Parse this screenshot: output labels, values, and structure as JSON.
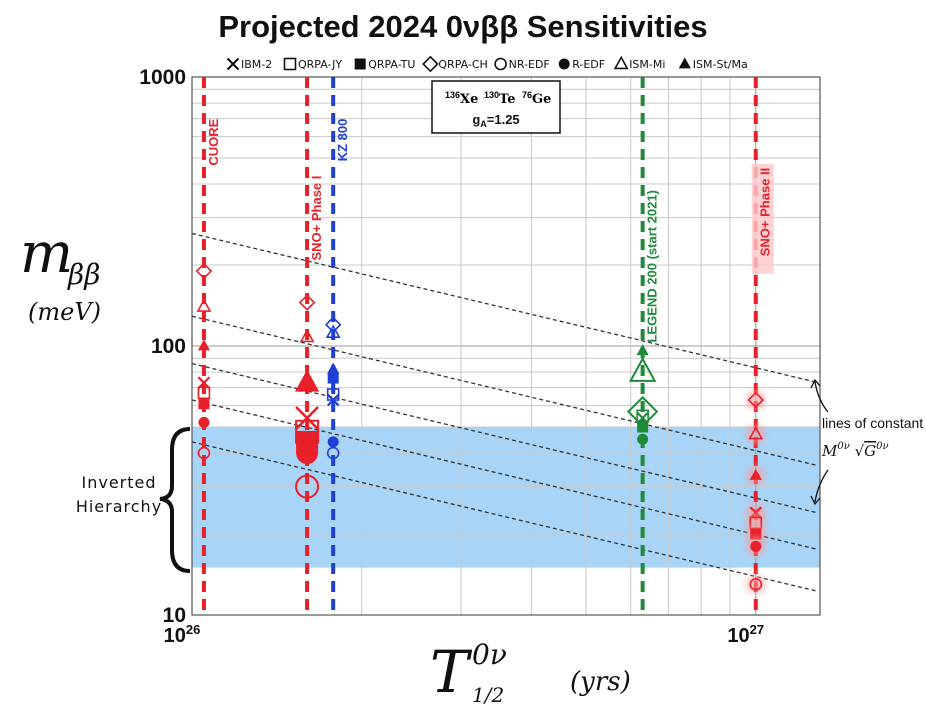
{
  "chart_data": {
    "type": "scatter",
    "title": "Projected 2024 0νββ Sensitivities",
    "xlabel": {
      "main": "T",
      "superscript": "0ν",
      "subscript": "1/2",
      "unit": "(yrs)"
    },
    "ylabel": {
      "main": "m",
      "subscript": "ββ",
      "unit": "(meV)"
    },
    "x_scale": "log",
    "y_scale": "log",
    "xlim": [
      1e+26,
      1.3e+27
    ],
    "ylim": [
      10,
      1000
    ],
    "y_ticks": [
      {
        "value": 10,
        "label": "10"
      },
      {
        "value": 100,
        "label": "100"
      },
      {
        "value": 1000,
        "label": "1000"
      }
    ],
    "x_ticks": [
      {
        "value": 1e+26,
        "base": "10",
        "exponent": "26"
      },
      {
        "value": 1e+27,
        "base": "10",
        "exponent": "27"
      }
    ],
    "grid": true,
    "legend": {
      "placement": "top",
      "entries": [
        {
          "label": "IBM-2",
          "marker": "x"
        },
        {
          "label": "QRPA-JY",
          "marker": "square-open"
        },
        {
          "label": "QRPA-TU",
          "marker": "square-filled"
        },
        {
          "label": "QRPA-CH",
          "marker": "diamond-open"
        },
        {
          "label": "NR-EDF",
          "marker": "circle-open"
        },
        {
          "label": "R-EDF",
          "marker": "circle-filled"
        },
        {
          "label": "ISM-Mi",
          "marker": "triangle-open"
        },
        {
          "label": "ISM-St/Ma",
          "marker": "triangle-filled"
        }
      ]
    },
    "annotation_box": {
      "isotopes": [
        {
          "mass": "136",
          "symbol": "Xe",
          "color": "#1f3fd6"
        },
        {
          "mass": "130",
          "symbol": "Te",
          "color": "#e8202a"
        },
        {
          "mass": "76",
          "symbol": "Ge",
          "color": "#1e8a3a"
        }
      ],
      "ga_prefix": "g",
      "ga_sub": "A",
      "ga_value": "=1.25"
    },
    "band": {
      "label_line1": "Inverted",
      "label_line2": "Hierarchy",
      "ymin": 15,
      "ymax": 50,
      "color": "#a8d4f7"
    },
    "constant_lines": {
      "label_line1": "lines of constant",
      "label_math": "M^{0ν} √G^{0ν}",
      "slope_decades_per_decade": -0.5,
      "lines": [
        {
          "y_at_xmin": 262,
          "y_at_1e27": 83
        },
        {
          "y_at_xmin": 129,
          "y_at_1e27": 40.8
        },
        {
          "y_at_xmin": 86,
          "y_at_1e27": 27.2
        },
        {
          "y_at_xmin": 63,
          "y_at_1e27": 19.9
        },
        {
          "y_at_xmin": 44,
          "y_at_1e27": 13.9
        }
      ]
    },
    "experiments": [
      {
        "name": "CUORE",
        "x": 1.05e+26,
        "color": "#e8202a",
        "label_y": 700,
        "label_style": "normal"
      },
      {
        "name": "SNO+ Phase I",
        "x": 1.6e+26,
        "color": "#e8202a",
        "label_y": 430,
        "label_style": "normal"
      },
      {
        "name": "KZ 800",
        "x": 1.78e+26,
        "color": "#1f3fd6",
        "label_y": 700,
        "label_style": "normal"
      },
      {
        "name": "LEGEND 200 (start 2021)",
        "x": 6.3e+26,
        "color": "#1e8a3a",
        "label_y": 380,
        "label_style": "normal"
      },
      {
        "name": "SNO+ Phase II",
        "x": 1e+27,
        "color": "#e8202a",
        "label_y": 460,
        "label_style": "glow"
      }
    ],
    "series": [
      {
        "experiment": "CUORE",
        "color": "#e8202a",
        "points": [
          {
            "marker": "diamond-open",
            "y": 190
          },
          {
            "marker": "triangle-open",
            "y": 140
          },
          {
            "marker": "triangle-filled",
            "y": 100
          },
          {
            "marker": "x",
            "y": 73
          },
          {
            "marker": "square-open",
            "y": 67
          },
          {
            "marker": "square-filled",
            "y": 61
          },
          {
            "marker": "circle-filled",
            "y": 52
          },
          {
            "marker": "circle-open",
            "y": 40
          }
        ]
      },
      {
        "experiment": "SNO+ Phase I",
        "color": "#e8202a",
        "points": [
          {
            "marker": "diamond-open",
            "y": 145
          },
          {
            "marker": "triangle-open",
            "y": 108
          },
          {
            "marker": "triangle-filled-large",
            "y": 73
          },
          {
            "marker": "x-large",
            "y": 54
          },
          {
            "marker": "square-open-large",
            "y": 48
          },
          {
            "marker": "square-filled-large",
            "y": 44
          },
          {
            "marker": "circle-filled-large",
            "y": 40
          },
          {
            "marker": "circle-open-large",
            "y": 30
          }
        ]
      },
      {
        "experiment": "KZ 800",
        "color": "#1f3fd6",
        "points": [
          {
            "marker": "diamond-open",
            "y": 120
          },
          {
            "marker": "triangle-open",
            "y": 112
          },
          {
            "marker": "triangle-filled",
            "y": 82
          },
          {
            "marker": "square-filled",
            "y": 76
          },
          {
            "marker": "square-open",
            "y": 66
          },
          {
            "marker": "x",
            "y": 63
          },
          {
            "marker": "circle-filled",
            "y": 44
          },
          {
            "marker": "circle-open",
            "y": 40
          }
        ]
      },
      {
        "experiment": "LEGEND 200 (start 2021)",
        "color": "#1e8a3a",
        "points": [
          {
            "marker": "triangle-filled",
            "y": 96
          },
          {
            "marker": "triangle-open-large",
            "y": 80
          },
          {
            "marker": "diamond-open-large",
            "y": 57
          },
          {
            "marker": "square-open",
            "y": 55
          },
          {
            "marker": "x",
            "y": 54
          },
          {
            "marker": "square-filled",
            "y": 50
          },
          {
            "marker": "circle-filled",
            "y": 45
          }
        ]
      },
      {
        "experiment": "SNO+ Phase II",
        "color": "#e8202a",
        "points": [
          {
            "marker": "diamond-open",
            "y": 63
          },
          {
            "marker": "triangle-open",
            "y": 47
          },
          {
            "marker": "triangle-filled",
            "y": 33
          },
          {
            "marker": "x",
            "y": 24
          },
          {
            "marker": "square-open",
            "y": 22
          },
          {
            "marker": "square-filled",
            "y": 20
          },
          {
            "marker": "circle-filled",
            "y": 18
          },
          {
            "marker": "circle-open",
            "y": 13
          }
        ]
      }
    ]
  }
}
